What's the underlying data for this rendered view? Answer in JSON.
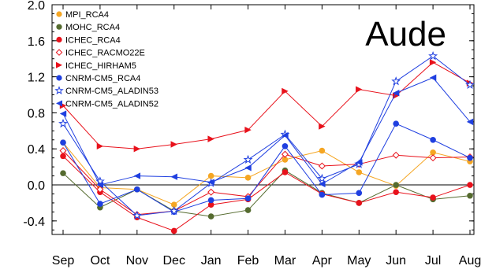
{
  "chart_data": {
    "type": "line",
    "title": "Aude",
    "xlabel": "",
    "ylabel": "",
    "ylim": [
      -0.55,
      2.0
    ],
    "yticks": [
      "2.0",
      "1.6",
      "1.2",
      "0.8",
      "0.4",
      "0.0",
      "-0.4"
    ],
    "ytick_values": [
      2.0,
      1.6,
      1.2,
      0.8,
      0.4,
      0.0,
      -0.4
    ],
    "categories": [
      "Sep",
      "Oct",
      "Nov",
      "Dec",
      "Jan",
      "Feb",
      "Mar",
      "Apr",
      "May",
      "Jun",
      "Jul",
      "Aug"
    ],
    "grid": false,
    "reference_line": 0.0,
    "legend_position": "top-left",
    "series": [
      {
        "name": "MPI_RCA4",
        "color": "#f5a623",
        "marker": "filled-circle",
        "values": [
          0.47,
          -0.03,
          -0.05,
          -0.22,
          0.1,
          0.08,
          0.28,
          0.38,
          0.14,
          -0.01,
          0.36,
          0.26
        ]
      },
      {
        "name": "MOHC_RCA4",
        "color": "#556b2f",
        "marker": "filled-circle",
        "values": [
          0.13,
          -0.25,
          -0.05,
          -0.29,
          -0.35,
          -0.28,
          0.16,
          -0.09,
          -0.2,
          0.0,
          -0.16,
          -0.12
        ]
      },
      {
        "name": "ICHEC_RCA4",
        "color": "#e8111b",
        "marker": "filled-circle",
        "values": [
          0.32,
          -0.08,
          -0.36,
          -0.51,
          -0.22,
          -0.16,
          0.14,
          -0.1,
          -0.2,
          -0.08,
          -0.14,
          0.0
        ]
      },
      {
        "name": "ICHEC_RACMO22E",
        "color": "#e8111b",
        "marker": "open-diamond",
        "values": [
          0.38,
          -0.05,
          -0.33,
          -0.29,
          -0.08,
          -0.13,
          0.34,
          0.21,
          0.23,
          0.33,
          0.3,
          0.31
        ]
      },
      {
        "name": "ICHEC_HIRHAM5",
        "color": "#e8111b",
        "marker": "right-triangle",
        "values": [
          0.88,
          0.43,
          0.4,
          0.45,
          0.51,
          0.61,
          1.04,
          0.65,
          1.06,
          0.99,
          1.36,
          1.13
        ]
      },
      {
        "name": "CNRM-CM5_RCA4",
        "color": "#1f3fe0",
        "marker": "filled-circle",
        "values": [
          0.47,
          -0.21,
          -0.05,
          -0.3,
          -0.17,
          -0.15,
          0.43,
          -0.11,
          -0.09,
          0.68,
          0.5,
          0.3
        ]
      },
      {
        "name": "CNRM-CM5_ALADIN53",
        "color": "#1f3fe0",
        "marker": "open-star",
        "values": [
          0.68,
          0.04,
          -0.34,
          -0.29,
          0.02,
          0.28,
          0.56,
          0.07,
          0.23,
          1.15,
          1.43,
          1.11
        ]
      },
      {
        "name": "CNRM-CM5_ALADIN52",
        "color": "#1f3fe0",
        "marker": "left-triangle",
        "values": [
          0.79,
          0.0,
          0.1,
          0.09,
          0.03,
          0.19,
          0.55,
          0.01,
          0.25,
          1.02,
          1.19,
          0.7
        ]
      }
    ]
  }
}
